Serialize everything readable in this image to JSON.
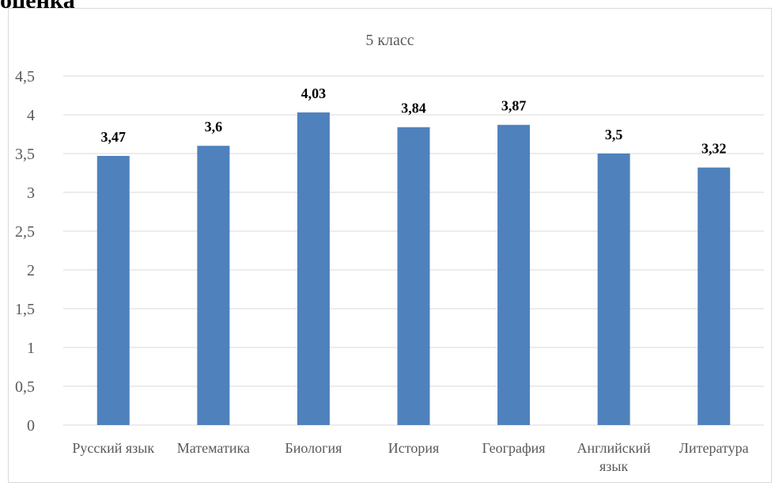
{
  "page": {
    "heading": "оценка"
  },
  "colors": {
    "bar": "#4f81bd",
    "grid": "#d9d9d9",
    "text": "#595959",
    "label": "#000000"
  },
  "chart_data": {
    "type": "bar",
    "title": "5 класс",
    "categories": [
      "Русский язык",
      "Математика",
      "Биология",
      "История",
      "География",
      "Английский язык",
      "Литература"
    ],
    "category_lines": [
      [
        "Русский язык"
      ],
      [
        "Математика"
      ],
      [
        "Биология"
      ],
      [
        "История"
      ],
      [
        "География"
      ],
      [
        "Английский",
        "язык"
      ],
      [
        "Литература"
      ]
    ],
    "values": [
      3.47,
      3.6,
      4.03,
      3.84,
      3.87,
      3.5,
      3.32
    ],
    "value_labels": [
      "3,47",
      "3,6",
      "4,03",
      "3,84",
      "3,87",
      "3,5",
      "3,32"
    ],
    "y_ticks": [
      0,
      0.5,
      1,
      1.5,
      2,
      2.5,
      3,
      3.5,
      4,
      4.5
    ],
    "y_tick_labels": [
      "0",
      "0,5",
      "1",
      "1,5",
      "2",
      "2,5",
      "3",
      "3,5",
      "4",
      "4,5"
    ],
    "ylim": [
      0,
      4.5
    ],
    "grid": true,
    "legend": "none",
    "xlabel": "",
    "ylabel": ""
  }
}
